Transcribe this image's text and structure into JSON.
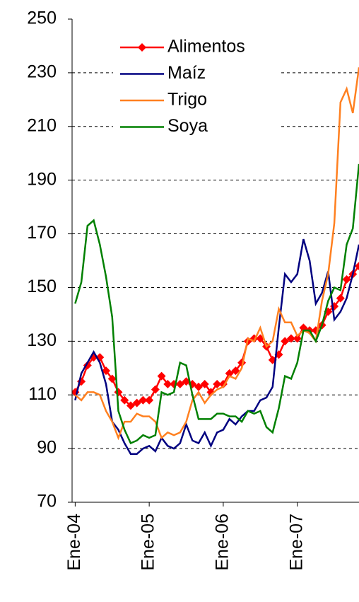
{
  "chart_data": {
    "type": "line",
    "x": [
      0,
      1,
      2,
      3,
      4,
      5,
      6,
      7,
      8,
      9,
      10,
      11,
      12,
      13,
      14,
      15,
      16,
      17,
      18,
      19,
      20,
      21,
      22,
      23,
      24,
      25,
      26,
      27,
      28,
      29,
      30,
      31,
      32,
      33,
      34,
      35,
      36,
      37,
      38,
      39,
      40,
      41,
      42,
      43,
      44,
      45,
      46
    ],
    "xlim": [
      -0.5,
      46
    ],
    "xticks": [
      {
        "value": 0,
        "label": "Ene-04"
      },
      {
        "value": 12,
        "label": "Ene-05"
      },
      {
        "value": 24,
        "label": "Ene-06"
      },
      {
        "value": 36,
        "label": "Ene-07"
      }
    ],
    "ylim": [
      70,
      250
    ],
    "yticks": [
      70,
      90,
      110,
      130,
      150,
      170,
      190,
      210,
      230,
      250
    ],
    "grid": true,
    "legend": "top-left",
    "series": [
      {
        "name": "Alimentos",
        "color": "#ff0000",
        "marker": "diamond",
        "values": [
          111,
          115,
          121,
          124,
          124,
          119,
          116,
          111,
          108,
          106,
          107,
          108,
          108,
          112,
          117,
          114,
          114,
          114,
          115,
          114,
          113,
          114,
          111,
          114,
          114,
          118,
          119,
          122,
          130,
          131,
          131,
          128,
          123,
          125,
          130,
          131,
          131,
          135,
          134,
          134,
          136,
          141,
          143,
          146,
          153,
          155,
          158
        ]
      },
      {
        "name": "Maíz",
        "color": "#000080",
        "values": [
          108,
          118,
          122,
          126,
          122,
          114,
          100,
          97,
          92,
          88,
          88,
          90,
          91,
          89,
          94,
          91,
          90,
          92,
          99,
          93,
          92,
          96,
          91,
          96,
          97,
          101,
          99,
          102,
          104,
          104,
          108,
          109,
          113,
          135,
          155,
          152,
          155,
          168,
          160,
          144,
          148,
          156,
          138,
          141,
          146,
          155,
          166
        ]
      },
      {
        "name": "Trigo",
        "color": "#ff8020",
        "values": [
          110,
          108,
          111,
          111,
          110,
          104,
          100,
          94,
          100,
          100,
          103,
          102,
          102,
          100,
          94,
          96,
          95,
          96,
          100,
          108,
          111,
          107,
          110,
          112,
          113,
          117,
          116,
          120,
          131,
          130,
          135,
          128,
          130,
          142,
          137,
          137,
          132,
          134,
          133,
          130,
          145,
          155,
          174,
          219,
          224,
          215,
          232
        ]
      },
      {
        "name": "Soya",
        "color": "#008000",
        "values": [
          144,
          152,
          173,
          175,
          166,
          154,
          139,
          104,
          97,
          92,
          93,
          95,
          94,
          95,
          111,
          110,
          111,
          122,
          121,
          110,
          101,
          101,
          101,
          103,
          103,
          102,
          102,
          100,
          104,
          103,
          104,
          98,
          96,
          105,
          117,
          116,
          122,
          134,
          134,
          130,
          136,
          145,
          150,
          149,
          166,
          172,
          196
        ]
      }
    ]
  }
}
